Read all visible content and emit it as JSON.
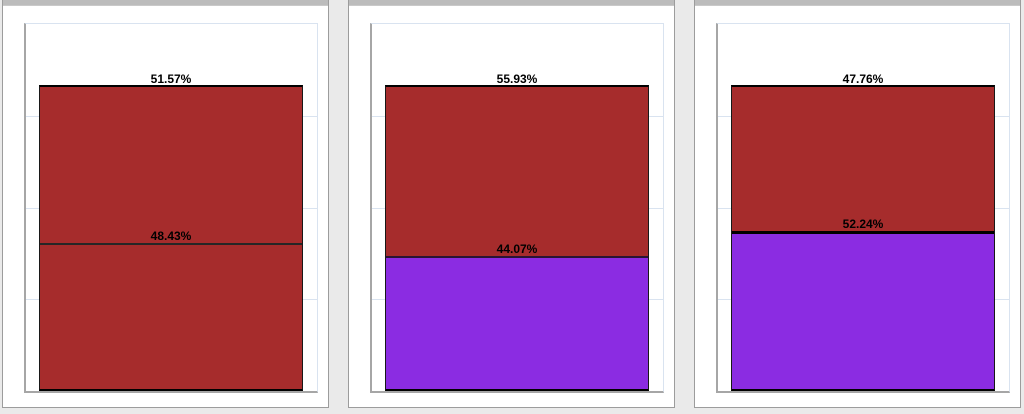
{
  "colors": {
    "page_background": "#eaeaea",
    "card_background": "#ffffff",
    "card_border": "#9c9c9c",
    "card_titlebar": "#bcbcbc",
    "plot_border_light": "#d9e3f0",
    "axis_gray": "#a6a6a6",
    "bar_outline": "#000000",
    "label_text": "#000000",
    "bar_red": "#a62c2c",
    "bar_purple": "#8b2ce2"
  },
  "chart_data": [
    {
      "type": "bar",
      "stacked": true,
      "title": "",
      "xlabel": "",
      "ylabel": "",
      "categories": [
        ""
      ],
      "ylim": [
        0,
        120
      ],
      "gridlines": [
        30,
        60,
        90
      ],
      "grid": true,
      "legend": false,
      "series": [
        {
          "name": "top-segment",
          "value": 51.57,
          "label": "51.57%",
          "color": "#a62c2c"
        },
        {
          "name": "bottom-segment",
          "value": 48.43,
          "label": "48.43%",
          "color": "#a62c2c"
        }
      ],
      "divider": {
        "color": "#262626",
        "thickness_px": 2
      }
    },
    {
      "type": "bar",
      "stacked": true,
      "title": "",
      "xlabel": "",
      "ylabel": "",
      "categories": [
        ""
      ],
      "ylim": [
        0,
        120
      ],
      "gridlines": [
        30,
        60,
        90
      ],
      "grid": true,
      "legend": false,
      "series": [
        {
          "name": "top-segment",
          "value": 55.93,
          "label": "55.93%",
          "color": "#a62c2c"
        },
        {
          "name": "bottom-segment",
          "value": 44.07,
          "label": "44.07%",
          "color": "#8b2ce2"
        }
      ],
      "divider": {
        "color": "#2a1433",
        "thickness_px": 2
      }
    },
    {
      "type": "bar",
      "stacked": true,
      "title": "",
      "xlabel": "",
      "ylabel": "",
      "categories": [
        ""
      ],
      "ylim": [
        0,
        120
      ],
      "gridlines": [
        30,
        60,
        90
      ],
      "grid": true,
      "legend": false,
      "series": [
        {
          "name": "top-segment",
          "value": 47.76,
          "label": "47.76%",
          "color": "#a62c2c"
        },
        {
          "name": "bottom-segment",
          "value": 52.24,
          "label": "52.24%",
          "color": "#8b2ce2"
        }
      ],
      "divider": {
        "color": "#000000",
        "thickness_px": 3
      }
    }
  ]
}
